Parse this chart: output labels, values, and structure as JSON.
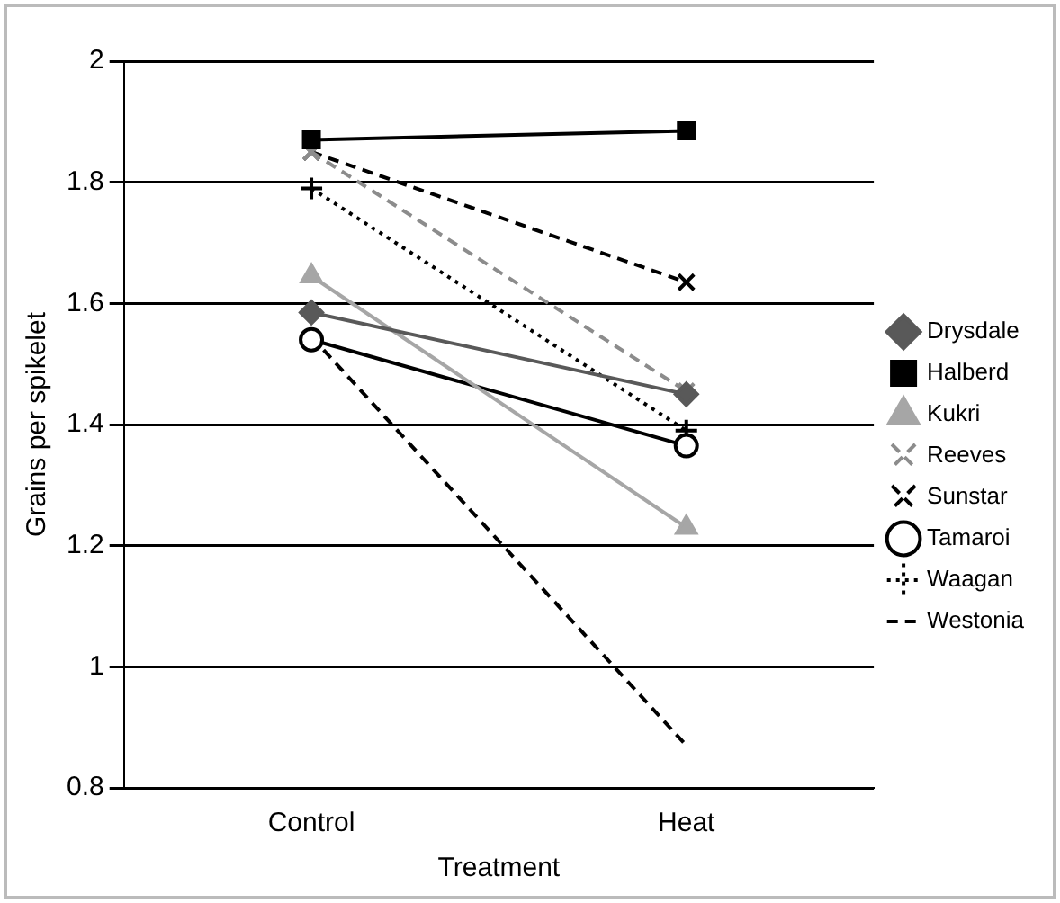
{
  "chart_data": {
    "type": "line",
    "xlabel": "Treatment",
    "ylabel": "Grains per spikelet",
    "categories": [
      "Control",
      "Heat"
    ],
    "ylim": [
      0.8,
      2
    ],
    "yticks": [
      0.8,
      1,
      1.2,
      1.4,
      1.6,
      1.8,
      2
    ],
    "grid": "y",
    "legend": "right",
    "series": [
      {
        "name": "Drysdale",
        "color": "#595959",
        "values": [
          1.585,
          1.45
        ],
        "marker": "diamond",
        "line_style": "solid"
      },
      {
        "name": "Halberd",
        "color": "#000000",
        "values": [
          1.87,
          1.885
        ],
        "marker": "square",
        "line_style": "solid"
      },
      {
        "name": "Kukri",
        "color": "#a6a6a6",
        "values": [
          1.645,
          1.23
        ],
        "marker": "triangle",
        "line_style": "solid"
      },
      {
        "name": "Reeves",
        "color": "#8c8c8c",
        "values": [
          1.85,
          1.455
        ],
        "marker": "cross",
        "line_style": "dashed"
      },
      {
        "name": "Sunstar",
        "color": "#000000",
        "values": [
          1.85,
          1.635
        ],
        "marker": "cross",
        "line_style": "dashed"
      },
      {
        "name": "Tamaroi",
        "color": "#000000",
        "values": [
          1.54,
          1.365
        ],
        "marker": "circle",
        "line_style": "solid"
      },
      {
        "name": "Waagan",
        "color": "#000000",
        "values": [
          1.79,
          1.39
        ],
        "marker": "plus",
        "line_style": "dotted"
      },
      {
        "name": "Westonia",
        "color": "#000000",
        "values": [
          1.545,
          0.87
        ],
        "marker": "none",
        "line_style": "dashed"
      }
    ]
  }
}
